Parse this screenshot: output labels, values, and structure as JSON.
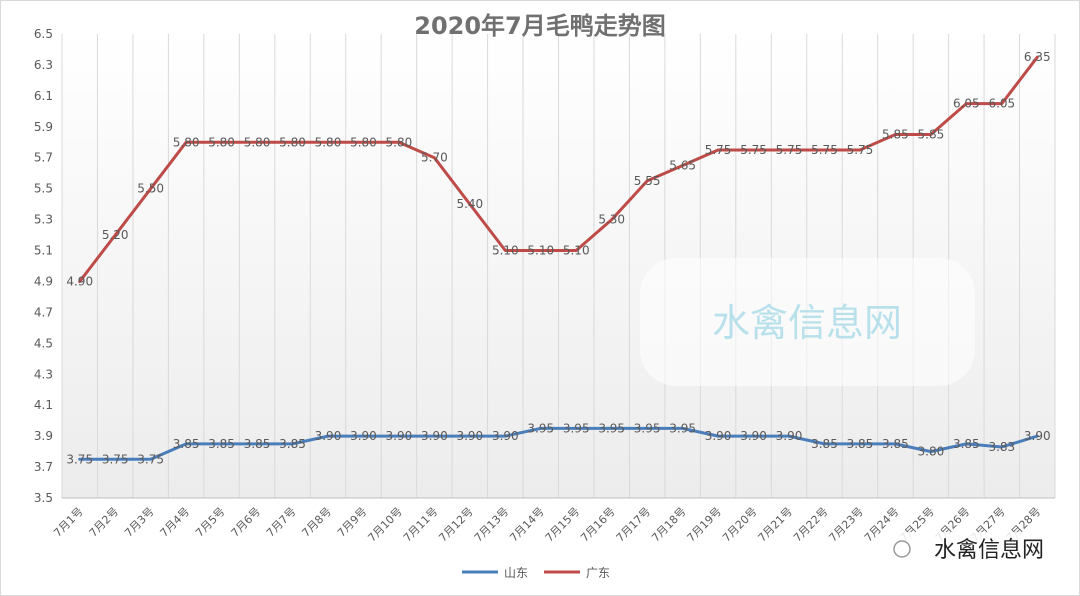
{
  "chart_data": {
    "type": "line",
    "title": "2020年7月毛鸭走势图",
    "categories": [
      "7月1号",
      "7月2号",
      "7月3号",
      "7月4号",
      "7月5号",
      "7月6号",
      "7月7号",
      "7月8号",
      "7月9号",
      "7月10号",
      "7月11号",
      "7月12号",
      "7月13号",
      "7月14号",
      "7月15号",
      "7月16号",
      "7月17号",
      "7月18号",
      "7月19号",
      "7月20号",
      "7月21号",
      "7月22号",
      "7月23号",
      "7月24号",
      "7月25号",
      "7月26号",
      "7月27号",
      "7月28号"
    ],
    "series": [
      {
        "name": "山东",
        "color": "#4a7ebb",
        "values": [
          3.75,
          3.75,
          3.75,
          3.85,
          3.85,
          3.85,
          3.85,
          3.9,
          3.9,
          3.9,
          3.9,
          3.9,
          3.9,
          3.95,
          3.95,
          3.95,
          3.95,
          3.95,
          3.9,
          3.9,
          3.9,
          3.85,
          3.85,
          3.85,
          3.8,
          3.85,
          3.83,
          3.9
        ],
        "labels": [
          "3.75",
          "3.75",
          "3.75",
          "3.85",
          "3.85",
          "3.85",
          "3.85",
          "3.90",
          "3.90",
          "3.90",
          "3.90",
          "3.90",
          "3.90",
          "3.95",
          "3.95",
          "3.95",
          "3.95",
          "3.95",
          "3.90",
          "3.90",
          "3.90",
          "3.85",
          "3.85",
          "3.85",
          "3.80",
          "3.85",
          "3.83",
          "3.90"
        ]
      },
      {
        "name": "广东",
        "color": "#be4b48",
        "values": [
          4.9,
          5.2,
          5.5,
          5.8,
          5.8,
          5.8,
          5.8,
          5.8,
          5.8,
          5.8,
          5.7,
          5.4,
          5.1,
          5.1,
          5.1,
          5.3,
          5.55,
          5.65,
          5.75,
          5.75,
          5.75,
          5.75,
          5.75,
          5.85,
          5.85,
          6.05,
          6.05,
          6.35
        ],
        "labels": [
          "4.90",
          "5.20",
          "5.50",
          "5.80",
          "5.80",
          "5.80",
          "5.80",
          "5.80",
          "5.80",
          "5.80",
          "5.70",
          "5.40",
          "5.10",
          "5.10",
          "5.10",
          "5.30",
          "5.55",
          "5.65",
          "5.75",
          "5.75",
          "5.75",
          "5.75",
          "5.75",
          "5.85",
          "5.85",
          "6.05",
          "6.05",
          "6.35"
        ]
      }
    ],
    "yticks": [
      "3.5",
      "3.7",
      "3.9",
      "4.1",
      "4.3",
      "4.5",
      "4.7",
      "4.9",
      "5.1",
      "5.3",
      "5.5",
      "5.7",
      "5.9",
      "6.1",
      "6.3",
      "6.5"
    ],
    "ylim": [
      3.5,
      6.5
    ],
    "grid": "vertical",
    "legend": "bottom-center"
  },
  "watermark": {
    "text": "水禽信息网"
  },
  "footer_watermark": {
    "text": "水禽信息网"
  }
}
